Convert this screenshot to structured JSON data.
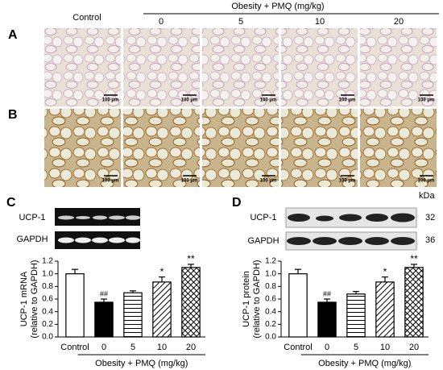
{
  "figure": {
    "panel_labels": [
      "A",
      "B",
      "C",
      "D"
    ],
    "control_header": "Control",
    "group_header": "Obesity + PMQ (mg/kg)",
    "dose_headers": [
      "0",
      "5",
      "10",
      "20"
    ],
    "scale_bar": "100 μm",
    "blot": {
      "bands": [
        "UCP-1",
        "GAPDH"
      ],
      "unit": "kDa",
      "sizes": [
        32,
        36
      ]
    }
  },
  "chart_data": [
    {
      "type": "bar",
      "y_label": [
        "UCP-1 mRNA",
        "(relative to GAPDH)"
      ],
      "categories": [
        "Control",
        "0",
        "5",
        "10",
        "20"
      ],
      "group_label": "Obesity + PMQ (mg/kg)",
      "values": [
        1.0,
        0.55,
        0.7,
        0.87,
        1.1
      ],
      "errors": [
        0.07,
        0.05,
        0.03,
        0.08,
        0.05
      ],
      "annotations": [
        null,
        "##",
        null,
        "*",
        "**"
      ],
      "patterns": [
        "none",
        "solid",
        "horizontal",
        "diagonal",
        "cross"
      ],
      "ylim": [
        0,
        1.2
      ],
      "yticks": [
        {
          "value": 0,
          "label": "0.0"
        },
        0.2,
        0.4,
        0.6,
        0.8,
        {
          "value": 1,
          "label": "1.0"
        },
        1.2
      ]
    },
    {
      "type": "bar",
      "y_label": [
        "UCP-1 protein",
        "(relative to GAPDH)"
      ],
      "categories": [
        "Control",
        "0",
        "5",
        "10",
        "20"
      ],
      "group_label": "Obesity + PMQ (mg/kg)",
      "values": [
        1.0,
        0.55,
        0.68,
        0.87,
        1.1
      ],
      "errors": [
        0.07,
        0.05,
        0.04,
        0.08,
        0.05
      ],
      "annotations": [
        null,
        "##",
        null,
        "*",
        "**"
      ],
      "patterns": [
        "none",
        "solid",
        "horizontal",
        "diagonal",
        "cross"
      ],
      "ylim": [
        0,
        1.2
      ],
      "yticks": [
        {
          "value": 0,
          "label": "0.0"
        },
        0.2,
        0.4,
        0.6,
        0.8,
        {
          "value": 1,
          "label": "1.0"
        },
        1.2
      ]
    }
  ]
}
